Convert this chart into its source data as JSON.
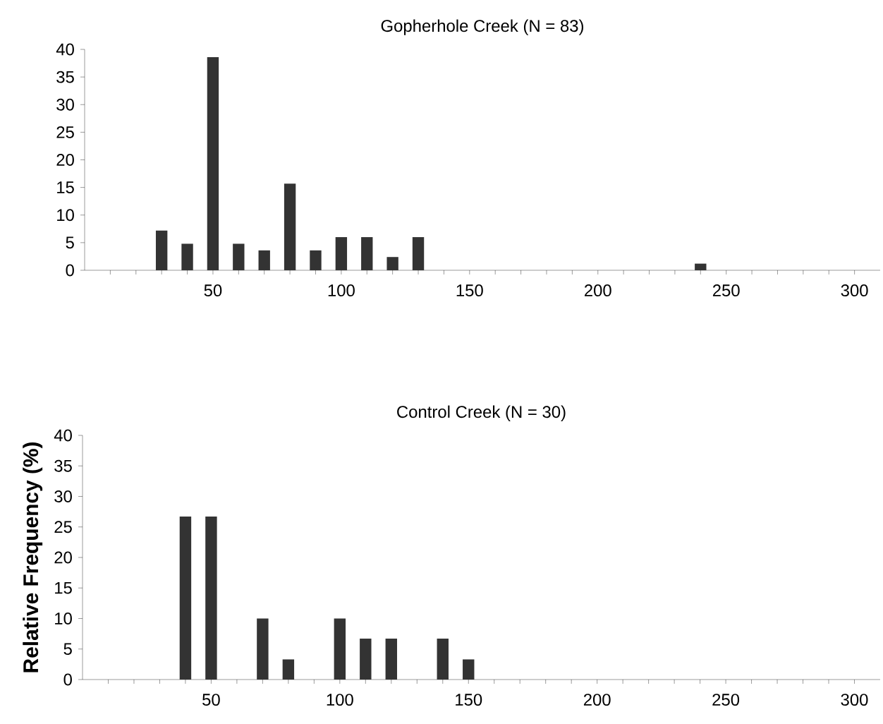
{
  "chart_data": [
    {
      "type": "bar",
      "title": "Gopherhole Creek (N = 83)",
      "x": [
        30,
        40,
        50,
        60,
        70,
        80,
        90,
        100,
        110,
        120,
        130,
        240
      ],
      "values": [
        7.2,
        4.8,
        38.6,
        4.8,
        3.6,
        15.7,
        3.6,
        6.0,
        6.0,
        2.4,
        6.0,
        1.2
      ],
      "color": "#333333",
      "xlim": [
        0,
        310
      ],
      "ylim": [
        0,
        40
      ],
      "yticks": [
        0,
        5,
        10,
        15,
        20,
        25,
        30,
        35,
        40
      ],
      "xticks": [
        {
          "value": 10,
          "label": null
        },
        {
          "value": 20,
          "label": null
        },
        {
          "value": 30,
          "label": null
        },
        {
          "value": 40,
          "label": null
        },
        50,
        {
          "value": 60,
          "label": null
        },
        {
          "value": 70,
          "label": null
        },
        {
          "value": 80,
          "label": null
        },
        {
          "value": 90,
          "label": null
        },
        100,
        {
          "value": 110,
          "label": null
        },
        {
          "value": 120,
          "label": null
        },
        {
          "value": 130,
          "label": null
        },
        {
          "value": 140,
          "label": null
        },
        150,
        {
          "value": 160,
          "label": null
        },
        {
          "value": 170,
          "label": null
        },
        {
          "value": 180,
          "label": null
        },
        {
          "value": 190,
          "label": null
        },
        200,
        {
          "value": 210,
          "label": null
        },
        {
          "value": 220,
          "label": null
        },
        {
          "value": 230,
          "label": null
        },
        {
          "value": 240,
          "label": null
        },
        250,
        {
          "value": 260,
          "label": null
        },
        {
          "value": 270,
          "label": null
        },
        {
          "value": 280,
          "label": null
        },
        {
          "value": 290,
          "label": null
        },
        300
      ]
    },
    {
      "type": "bar",
      "title": "Control Creek (N = 30)",
      "ylabel": "Relative Frequency (%)",
      "x": [
        40,
        50,
        70,
        80,
        100,
        110,
        120,
        140,
        150
      ],
      "values": [
        26.7,
        26.7,
        10.0,
        3.3,
        10.0,
        6.7,
        6.7,
        6.7,
        3.3
      ],
      "color": "#333333",
      "xlim": [
        0,
        310
      ],
      "ylim": [
        0,
        40
      ],
      "yticks": [
        0,
        5,
        10,
        15,
        20,
        25,
        30,
        35,
        40
      ],
      "xticks": [
        {
          "value": 10,
          "label": null
        },
        {
          "value": 20,
          "label": null
        },
        {
          "value": 30,
          "label": null
        },
        {
          "value": 40,
          "label": null
        },
        50,
        {
          "value": 60,
          "label": null
        },
        {
          "value": 70,
          "label": null
        },
        {
          "value": 80,
          "label": null
        },
        {
          "value": 90,
          "label": null
        },
        100,
        {
          "value": 110,
          "label": null
        },
        {
          "value": 120,
          "label": null
        },
        {
          "value": 130,
          "label": null
        },
        {
          "value": 140,
          "label": null
        },
        150,
        {
          "value": 160,
          "label": null
        },
        {
          "value": 170,
          "label": null
        },
        {
          "value": 180,
          "label": null
        },
        {
          "value": 190,
          "label": null
        },
        200,
        {
          "value": 210,
          "label": null
        },
        {
          "value": 220,
          "label": null
        },
        {
          "value": 230,
          "label": null
        },
        {
          "value": 240,
          "label": null
        },
        250,
        {
          "value": 260,
          "label": null
        },
        {
          "value": 270,
          "label": null
        },
        {
          "value": 280,
          "label": null
        },
        {
          "value": 290,
          "label": null
        },
        300
      ]
    }
  ]
}
